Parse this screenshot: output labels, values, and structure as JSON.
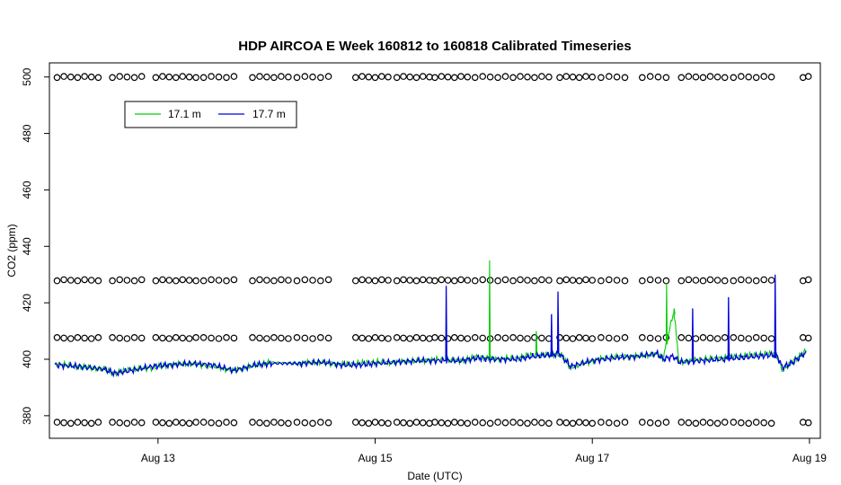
{
  "chart_data": {
    "type": "line",
    "title": "HDP AIRCOA E  Week 160812 to 160818  Calibrated Timeseries",
    "xlabel": "Date (UTC)",
    "ylabel": "CO2 (ppm)",
    "xlim": [
      12.0,
      19.1
    ],
    "ylim": [
      372,
      505
    ],
    "grid": false,
    "legend_position": "top-left",
    "x_ticks": [
      {
        "x": 13,
        "label": "Aug 13"
      },
      {
        "x": 15,
        "label": "Aug 15"
      },
      {
        "x": 17,
        "label": "Aug 17"
      },
      {
        "x": 19,
        "label": "Aug 19"
      }
    ],
    "y_ticks": [
      380,
      400,
      420,
      440,
      460,
      480,
      500
    ],
    "series": [
      {
        "name": "17.1 m",
        "color": "#00cc00",
        "x": [
          12.05,
          12.25,
          12.5,
          12.6,
          12.75,
          12.95,
          13.1,
          13.3,
          13.5,
          13.7,
          13.9,
          14.05,
          14.3,
          14.5,
          14.7,
          14.85,
          15.0,
          15.2,
          15.4,
          15.6,
          15.8,
          15.95,
          16.1,
          16.3,
          16.45,
          16.6,
          16.7,
          16.8,
          17.0,
          17.2,
          17.4,
          17.6,
          17.65,
          17.75,
          17.8,
          18.0,
          18.2,
          18.35,
          18.5,
          18.65,
          18.7,
          18.75,
          18.85,
          18.97
        ],
        "y": [
          398.5,
          397.5,
          396.5,
          395,
          396.5,
          397,
          398,
          398.5,
          397.5,
          396,
          398,
          399,
          398.5,
          399,
          398,
          398.5,
          399,
          399,
          399.5,
          400,
          399.5,
          401,
          400,
          400.5,
          401.5,
          401.5,
          402,
          397,
          399.5,
          401,
          401,
          402,
          400,
          417,
          399,
          400,
          400.5,
          401,
          401.5,
          402,
          401.5,
          396,
          399.5,
          403
        ]
      },
      {
        "name": "17.7 m",
        "color": "#0000dd",
        "x": [
          12.05,
          12.25,
          12.5,
          12.6,
          12.75,
          12.95,
          13.1,
          13.3,
          13.5,
          13.7,
          13.9,
          14.05,
          14.3,
          14.5,
          14.7,
          14.85,
          15.0,
          15.2,
          15.4,
          15.6,
          15.8,
          15.95,
          16.1,
          16.3,
          16.45,
          16.6,
          16.7,
          16.8,
          17.0,
          17.2,
          17.4,
          17.6,
          17.65,
          17.75,
          17.8,
          18.0,
          18.2,
          18.35,
          18.5,
          18.65,
          18.7,
          18.75,
          18.85,
          18.97
        ],
        "y": [
          398,
          397.5,
          396.5,
          395,
          396,
          397.5,
          398,
          398.5,
          398,
          396,
          398,
          398.5,
          398.5,
          399,
          398,
          398,
          398.5,
          399,
          399.5,
          399.5,
          399.5,
          400.5,
          400,
          400,
          401,
          401.5,
          402,
          397.5,
          399.5,
          400.5,
          401,
          402,
          400,
          401,
          399,
          399.5,
          400,
          400.5,
          401,
          401.5,
          401.5,
          397,
          399,
          402.5
        ]
      }
    ],
    "spikes": [
      {
        "x": 15.65,
        "y": 426,
        "series": "17.7 m"
      },
      {
        "x": 16.05,
        "y": 435,
        "series": "17.1 m"
      },
      {
        "x": 16.48,
        "y": 410,
        "series": "17.1 m"
      },
      {
        "x": 16.62,
        "y": 416,
        "series": "17.7 m"
      },
      {
        "x": 16.68,
        "y": 424,
        "series": "17.7 m"
      },
      {
        "x": 17.68,
        "y": 427,
        "series": "17.1 m"
      },
      {
        "x": 17.75,
        "y": 418,
        "series": "17.1 m"
      },
      {
        "x": 17.92,
        "y": 418,
        "series": "17.7 m"
      },
      {
        "x": 18.25,
        "y": 422,
        "series": "17.7 m"
      },
      {
        "x": 18.68,
        "y": 430,
        "series": "17.7 m"
      }
    ],
    "calibration_levels": [
      500,
      428,
      407.5,
      377.5
    ],
    "calibration_segments": [
      [
        12.07,
        12.45
      ],
      [
        12.58,
        12.85
      ],
      [
        12.98,
        13.35
      ],
      [
        13.42,
        13.7
      ],
      [
        13.87,
        14.2
      ],
      [
        14.28,
        14.57
      ],
      [
        14.82,
        15.12
      ],
      [
        15.2,
        15.5
      ],
      [
        15.55,
        15.85
      ],
      [
        15.92,
        16.2
      ],
      [
        16.27,
        16.6
      ],
      [
        16.7,
        17.0
      ],
      [
        17.08,
        17.3
      ],
      [
        17.46,
        17.68
      ],
      [
        17.82,
        18.22
      ],
      [
        18.3,
        18.65
      ],
      [
        18.94,
        18.99
      ]
    ]
  }
}
